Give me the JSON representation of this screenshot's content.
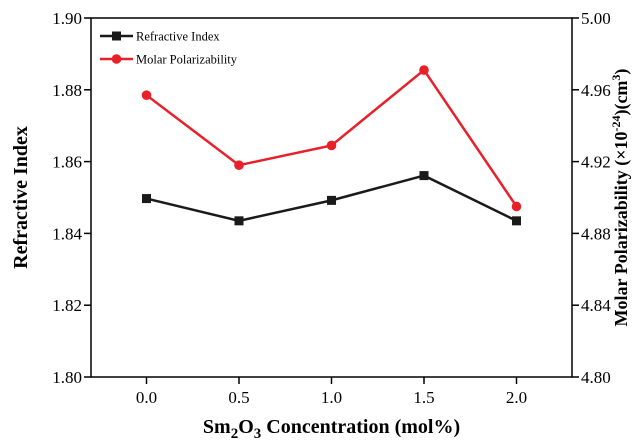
{
  "chart_data": {
    "type": "line",
    "x": [
      "0.0",
      "0.5",
      "1.0",
      "1.5",
      "2.0"
    ],
    "x_values": [
      0.0,
      0.5,
      1.0,
      1.5,
      2.0
    ],
    "xlim": [
      -0.3,
      2.3
    ],
    "xlabel": {
      "main": "Sm",
      "sub1": "2",
      "mid": "O",
      "sub2": "3",
      "rest": " Concentration (mol%)"
    },
    "y_left": {
      "label": "Refractive Index",
      "ylim": [
        1.8,
        1.9
      ],
      "ticks": [
        "1.80",
        "1.82",
        "1.84",
        "1.86",
        "1.88",
        "1.90"
      ],
      "tick_values": [
        1.8,
        1.82,
        1.84,
        1.86,
        1.88,
        1.9
      ]
    },
    "y_right": {
      "label": {
        "main": "Molar Polarizability (×10",
        "sup1": "-24",
        "mid": ")(cm",
        "sup2": "3",
        "rest": ")"
      },
      "ylim": [
        4.8,
        5.0
      ],
      "ticks": [
        "4.80",
        "4.84",
        "4.88",
        "4.92",
        "4.96",
        "5.00"
      ],
      "tick_values": [
        4.8,
        4.84,
        4.88,
        4.92,
        4.96,
        5.0
      ]
    },
    "series": [
      {
        "name": "Refractive Index",
        "axis": "left",
        "color": "#1a1a1a",
        "marker": "square",
        "values": [
          1.8497,
          1.8435,
          1.8492,
          1.8561,
          1.8435
        ]
      },
      {
        "name": "Molar Polarizability",
        "axis": "right",
        "color": "#e8202a",
        "marker": "circle",
        "values": [
          4.957,
          4.918,
          4.929,
          4.971,
          4.895
        ]
      }
    ],
    "legend_position": "top-left",
    "grid": false
  }
}
